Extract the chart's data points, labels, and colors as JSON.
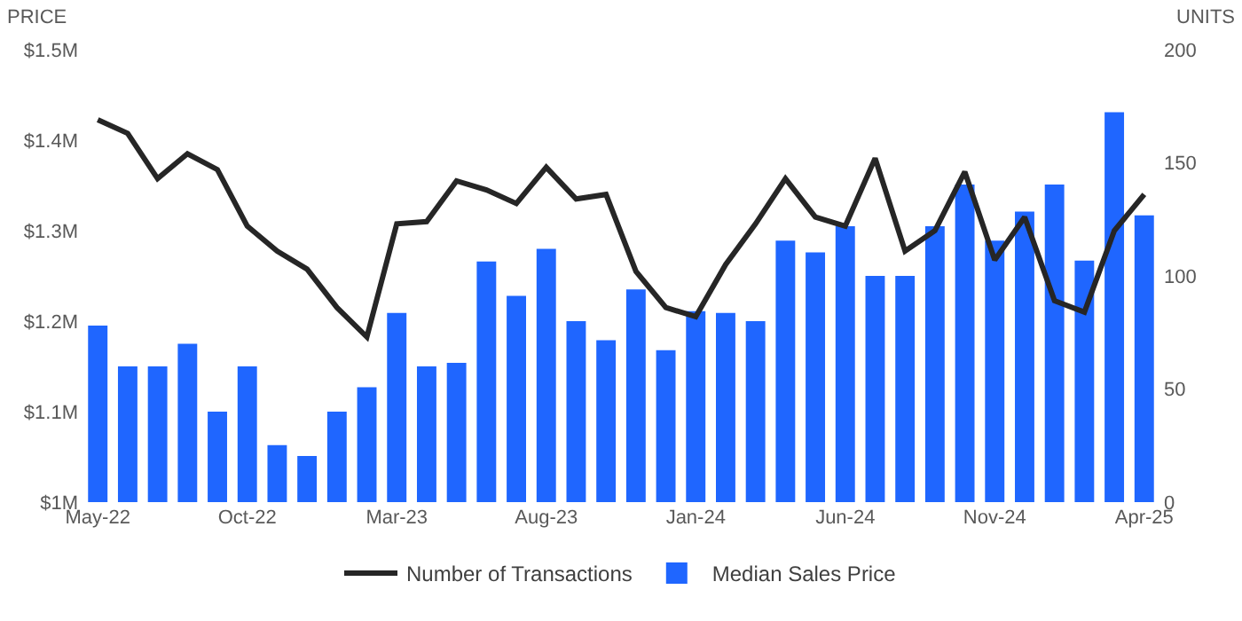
{
  "chart_data": {
    "type": "bar",
    "categories": [
      "May-22",
      null,
      null,
      null,
      null,
      "Oct-22",
      null,
      null,
      null,
      null,
      "Mar-23",
      null,
      null,
      null,
      null,
      "Aug-23",
      null,
      null,
      null,
      null,
      "Jan-24",
      null,
      null,
      null,
      null,
      "Jun-24",
      null,
      null,
      null,
      null,
      "Nov-24",
      null,
      null,
      null,
      null,
      "Apr-25"
    ],
    "ylabel": "PRICE",
    "y2label": "UNITS",
    "ylim": [
      1,
      1.5
    ],
    "yticks": [
      {
        "value": 1,
        "label": "$1M"
      },
      {
        "value": 1.1,
        "label": "$1.1M"
      },
      {
        "value": 1.2,
        "label": "$1.2M"
      },
      {
        "value": 1.3,
        "label": "$1.3M"
      },
      {
        "value": 1.4,
        "label": "$1.4M"
      },
      {
        "value": 1.5,
        "label": "$1.5M"
      }
    ],
    "y2lim": [
      0,
      200
    ],
    "y2ticks": [
      0,
      50,
      100,
      150,
      200
    ],
    "series": [
      {
        "name": "Number of Transactions",
        "type": "line",
        "axis": "y2",
        "color": "#262626",
        "values": [
          169,
          163,
          143,
          154,
          147,
          122,
          111,
          103,
          86,
          73,
          123,
          124,
          142,
          138,
          132,
          148,
          134,
          136,
          102,
          86,
          82,
          105,
          123,
          143,
          126,
          122,
          152,
          111,
          120,
          146,
          107,
          126,
          89,
          84,
          120,
          136
        ]
      },
      {
        "name": "Median Sales Price",
        "color": "#1f66ff",
        "values": [
          1.195,
          1.15,
          1.15,
          1.175,
          1.1,
          1.15,
          1.063,
          1.051,
          1.1,
          1.127,
          1.209,
          1.15,
          1.154,
          1.266,
          1.228,
          1.28,
          1.2,
          1.179,
          1.235,
          1.168,
          1.211,
          1.209,
          1.2,
          1.289,
          1.276,
          1.305,
          1.25,
          1.25,
          1.305,
          1.351,
          1.289,
          1.321,
          1.351,
          1.267,
          1.431,
          1.317
        ]
      }
    ],
    "grid": false,
    "legend": "bottom",
    "line_style": "solid",
    "marker": "none"
  }
}
